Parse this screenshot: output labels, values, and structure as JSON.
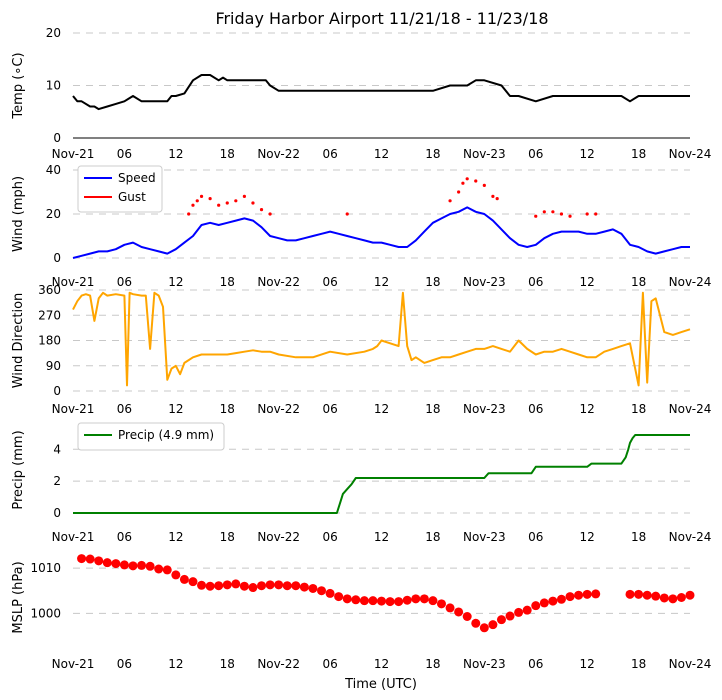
{
  "figure": {
    "title": "Friday Harbor Airport 11/21/18 - 11/23/18",
    "xlabel": "Time (UTC)",
    "x_range_hours": [
      0,
      72
    ],
    "x_ticks": [
      {
        "hour": 0,
        "label": "Nov-21"
      },
      {
        "hour": 6,
        "label": "06"
      },
      {
        "hour": 12,
        "label": "12"
      },
      {
        "hour": 18,
        "label": "18"
      },
      {
        "hour": 24,
        "label": "Nov-22"
      },
      {
        "hour": 30,
        "label": "06"
      },
      {
        "hour": 36,
        "label": "12"
      },
      {
        "hour": 42,
        "label": "18"
      },
      {
        "hour": 48,
        "label": "Nov-23"
      },
      {
        "hour": 54,
        "label": "06"
      },
      {
        "hour": 60,
        "label": "12"
      },
      {
        "hour": 66,
        "label": "18"
      },
      {
        "hour": 72,
        "label": "Nov-24"
      }
    ],
    "colors": {
      "temp": "#000000",
      "speed": "#0000ff",
      "gust": "#ff0000",
      "dir": "#ffa500",
      "precip": "#008000",
      "mslp": "#ff0000",
      "grid": "#c8c8c8"
    }
  },
  "chart_data": [
    {
      "type": "line",
      "ylabel": "Temp (∘C)",
      "ylim": [
        0,
        20
      ],
      "yticks": [
        0,
        10,
        20
      ],
      "series": [
        {
          "name": "Temp",
          "x": [
            0,
            0.5,
            1,
            2,
            2.5,
            3,
            4,
            5,
            6,
            7,
            8,
            8.5,
            9,
            10,
            11,
            11.5,
            12,
            13,
            14,
            15,
            16,
            17,
            17.5,
            18,
            19,
            20,
            21,
            22,
            22.5,
            23,
            24,
            28,
            32,
            36,
            40,
            42,
            44,
            46,
            47,
            48,
            50,
            51,
            52,
            54,
            56,
            60,
            64,
            65,
            66,
            68,
            70,
            72
          ],
          "y": [
            8,
            7,
            7,
            6,
            6,
            5.5,
            6,
            6.5,
            7,
            8,
            7,
            7,
            7,
            7,
            7,
            8,
            8,
            8.5,
            11,
            12,
            12,
            11,
            11.5,
            11,
            11,
            11,
            11,
            11,
            11,
            10,
            9,
            9,
            9,
            9,
            9,
            9,
            10,
            10,
            11,
            11,
            10,
            8,
            8,
            7,
            8,
            8,
            8,
            7,
            8,
            8,
            8,
            8
          ]
        }
      ]
    },
    {
      "type": "line",
      "ylabel": "Wind (mph)",
      "ylim": [
        0,
        40
      ],
      "yticks": [
        0,
        20,
        40
      ],
      "series": [
        {
          "name": "Speed",
          "x": [
            0,
            1,
            2,
            3,
            4,
            5,
            6,
            7,
            8,
            9,
            10,
            11,
            12,
            13,
            14,
            15,
            16,
            17,
            18,
            19,
            20,
            21,
            22,
            23,
            24,
            25,
            26,
            27,
            28,
            29,
            30,
            31,
            32,
            33,
            34,
            35,
            36,
            37,
            38,
            39,
            40,
            41,
            42,
            43,
            44,
            45,
            46,
            47,
            48,
            49,
            50,
            51,
            52,
            53,
            54,
            55,
            56,
            57,
            58,
            59,
            60,
            61,
            62,
            63,
            64,
            65,
            66,
            67,
            68,
            69,
            70,
            71,
            72
          ],
          "y": [
            0,
            1,
            2,
            3,
            3,
            4,
            6,
            7,
            5,
            4,
            3,
            2,
            4,
            7,
            10,
            15,
            16,
            15,
            16,
            17,
            18,
            17,
            14,
            10,
            9,
            8,
            8,
            9,
            10,
            11,
            12,
            11,
            10,
            9,
            8,
            7,
            7,
            6,
            5,
            5,
            8,
            12,
            16,
            18,
            20,
            21,
            23,
            21,
            20,
            17,
            13,
            9,
            6,
            5,
            6,
            9,
            11,
            12,
            12,
            12,
            11,
            11,
            12,
            13,
            11,
            6,
            5,
            3,
            2,
            3,
            4,
            5,
            5
          ]
        },
        {
          "name": "Gust",
          "x": [
            13.5,
            14,
            14.5,
            15,
            16,
            17,
            18,
            19,
            20,
            21,
            22,
            23,
            32,
            44,
            45,
            45.5,
            46,
            47,
            48,
            49,
            49.5,
            54,
            55,
            56,
            57,
            58,
            60,
            61
          ],
          "y": [
            20,
            24,
            26,
            28,
            27,
            24,
            25,
            26,
            28,
            25,
            22,
            20,
            20,
            26,
            30,
            34,
            36,
            35,
            33,
            28,
            27,
            19,
            21,
            21,
            20,
            19,
            20,
            20
          ]
        }
      ],
      "legend": [
        "Speed",
        "Gust"
      ]
    },
    {
      "type": "line",
      "ylabel": "Wind Direction",
      "ylim": [
        0,
        360
      ],
      "yticks": [
        0,
        90,
        180,
        270,
        360
      ],
      "series": [
        {
          "name": "Direction",
          "x": [
            0,
            0.5,
            1,
            1.5,
            2,
            2.5,
            3,
            3.5,
            4,
            5,
            6,
            6.3,
            6.6,
            7,
            8,
            8.5,
            9,
            9.5,
            10,
            10.5,
            11,
            11.5,
            12,
            12.5,
            13,
            14,
            15,
            16,
            17,
            18,
            19,
            20,
            21,
            22,
            23,
            24,
            26,
            28,
            30,
            32,
            34,
            35,
            35.5,
            36,
            37,
            38,
            38.5,
            39,
            39.5,
            40,
            41,
            42,
            43,
            44,
            45,
            46,
            47,
            48,
            49,
            50,
            51,
            52,
            53,
            54,
            55,
            56,
            57,
            58,
            59,
            60,
            61,
            62,
            63,
            64,
            65,
            66,
            66.5,
            67,
            67.5,
            68,
            69,
            70,
            71,
            72
          ],
          "y": [
            290,
            320,
            340,
            345,
            340,
            250,
            330,
            350,
            340,
            345,
            340,
            20,
            350,
            345,
            340,
            340,
            150,
            350,
            340,
            300,
            40,
            80,
            90,
            60,
            100,
            120,
            130,
            130,
            130,
            130,
            135,
            140,
            145,
            140,
            140,
            130,
            120,
            120,
            140,
            130,
            140,
            150,
            160,
            180,
            170,
            160,
            350,
            160,
            110,
            120,
            100,
            110,
            120,
            120,
            130,
            140,
            150,
            150,
            160,
            150,
            140,
            180,
            150,
            130,
            140,
            140,
            150,
            140,
            130,
            120,
            120,
            140,
            150,
            160,
            170,
            20,
            350,
            30,
            320,
            330,
            210,
            200,
            210,
            220
          ]
        }
      ]
    },
    {
      "type": "line",
      "ylabel": "Precip (mm)",
      "ylim": [
        0,
        5.4
      ],
      "yticks": [
        0,
        2,
        4
      ],
      "series": [
        {
          "name": "Precip (4.9 mm)",
          "x": [
            0,
            30.8,
            31.2,
            31.5,
            32,
            32.5,
            33,
            48,
            48.5,
            53.5,
            54,
            60,
            60.5,
            64,
            64.5,
            64.8,
            65,
            65.3,
            65.6,
            72
          ],
          "y": [
            0,
            0,
            0.7,
            1.2,
            1.5,
            1.8,
            2.2,
            2.2,
            2.5,
            2.5,
            2.9,
            2.9,
            3.1,
            3.1,
            3.5,
            4,
            4.4,
            4.7,
            4.9,
            4.9
          ]
        }
      ],
      "legend": [
        "Precip (4.9 mm)"
      ]
    },
    {
      "type": "scatter",
      "ylabel": "MSLP (hPa)",
      "ylim": [
        993,
        1014
      ],
      "yticks": [
        1000,
        1010
      ],
      "series": [
        {
          "name": "MSLP",
          "x": [
            1,
            2,
            3,
            4,
            5,
            6,
            7,
            8,
            9,
            10,
            11,
            12,
            13,
            14,
            15,
            16,
            17,
            18,
            19,
            20,
            21,
            22,
            23,
            24,
            25,
            26,
            27,
            28,
            29,
            30,
            31,
            32,
            33,
            34,
            35,
            36,
            37,
            38,
            39,
            40,
            41,
            42,
            43,
            44,
            45,
            46,
            47,
            48,
            49,
            50,
            51,
            52,
            53,
            54,
            55,
            56,
            57,
            58,
            59,
            60,
            61,
            65,
            66,
            67,
            68,
            69,
            70,
            71,
            72
          ],
          "y": [
            1012.1,
            1012,
            1011.6,
            1011.2,
            1011,
            1010.7,
            1010.5,
            1010.6,
            1010.4,
            1009.8,
            1009.6,
            1008.5,
            1007.5,
            1007,
            1006.2,
            1006,
            1006.1,
            1006.3,
            1006.5,
            1006,
            1005.7,
            1006.1,
            1006.3,
            1006.3,
            1006.1,
            1006.1,
            1005.8,
            1005.5,
            1005,
            1004.4,
            1003.7,
            1003.2,
            1003,
            1002.8,
            1002.8,
            1002.7,
            1002.6,
            1002.6,
            1002.9,
            1003.2,
            1003.2,
            1002.8,
            1002.1,
            1001.2,
            1000.3,
            999.3,
            997.8,
            996.8,
            997.5,
            998.6,
            999.4,
            1000.2,
            1000.7,
            1001.7,
            1002.3,
            1002.7,
            1003.1,
            1003.7,
            1004,
            1004.2,
            1004.3,
            1004.2,
            1004.2,
            1004,
            1003.8,
            1003.4,
            1003.2,
            1003.5,
            1004
          ]
        }
      ]
    }
  ]
}
